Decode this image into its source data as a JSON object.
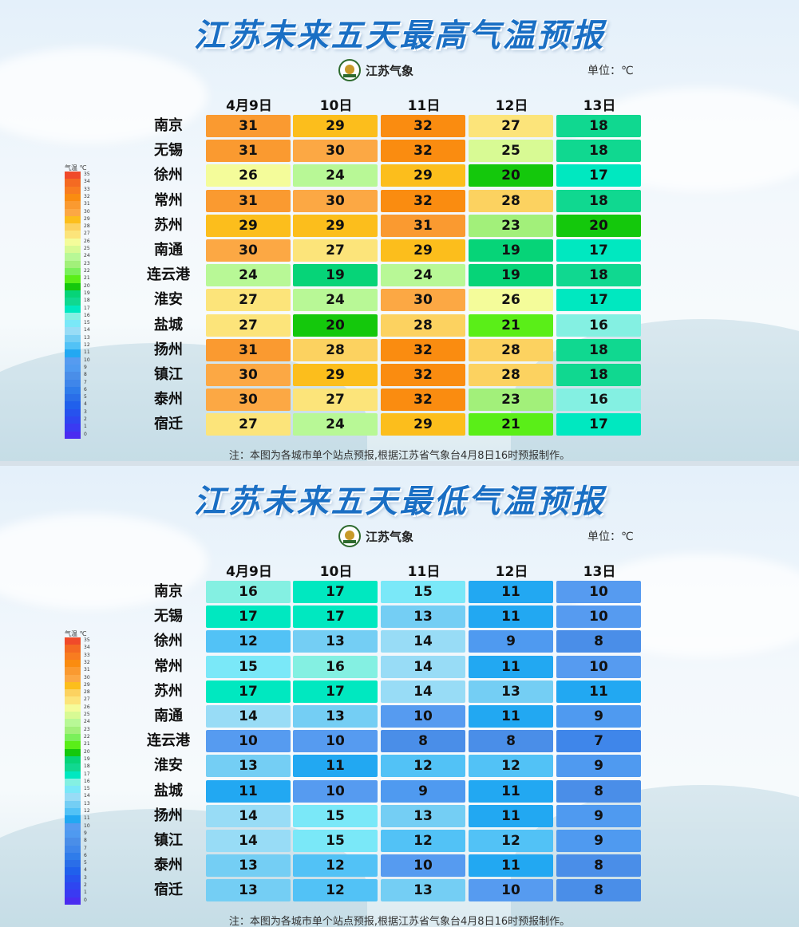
{
  "panels": [
    {
      "title": "江苏未来五天最高气温预报",
      "logo_text": "江苏气象",
      "unit": "单位：℃",
      "note": "注：本图为各城市单个站点预报,根据江苏省气象台4月8日16时预报制作。",
      "legend_head": "气温 ℃"
    },
    {
      "title": "江苏未来五天最低气温预报",
      "logo_text": "江苏气象",
      "unit": "单位：℃",
      "note": "注：本图为各城市单个站点预报,根据江苏省气象台4月8日16时预报制作。",
      "legend_head": "气温 ℃"
    }
  ],
  "chart_data": [
    {
      "type": "heatmap",
      "title": "江苏未来五天最高气温预报",
      "x": [
        "4月9日",
        "10日",
        "11日",
        "12日",
        "13日"
      ],
      "y": [
        "南京",
        "无锡",
        "徐州",
        "常州",
        "苏州",
        "南通",
        "连云港",
        "淮安",
        "盐城",
        "扬州",
        "镇江",
        "泰州",
        "宿迁"
      ],
      "values": [
        [
          31,
          29,
          32,
          27,
          18
        ],
        [
          31,
          30,
          32,
          25,
          18
        ],
        [
          26,
          24,
          29,
          20,
          17
        ],
        [
          31,
          30,
          32,
          28,
          18
        ],
        [
          29,
          29,
          31,
          23,
          20
        ],
        [
          30,
          27,
          29,
          19,
          17
        ],
        [
          24,
          19,
          24,
          19,
          18
        ],
        [
          27,
          24,
          30,
          26,
          17
        ],
        [
          27,
          20,
          28,
          21,
          16
        ],
        [
          31,
          28,
          32,
          28,
          18
        ],
        [
          30,
          29,
          32,
          28,
          18
        ],
        [
          30,
          27,
          32,
          23,
          16
        ],
        [
          27,
          24,
          29,
          21,
          17
        ]
      ],
      "unit": "℃",
      "legend_range": [
        0,
        35
      ]
    },
    {
      "type": "heatmap",
      "title": "江苏未来五天最低气温预报",
      "x": [
        "4月9日",
        "10日",
        "11日",
        "12日",
        "13日"
      ],
      "y": [
        "南京",
        "无锡",
        "徐州",
        "常州",
        "苏州",
        "南通",
        "连云港",
        "淮安",
        "盐城",
        "扬州",
        "镇江",
        "泰州",
        "宿迁"
      ],
      "values": [
        [
          16,
          17,
          15,
          11,
          10
        ],
        [
          17,
          17,
          13,
          11,
          10
        ],
        [
          12,
          13,
          14,
          9,
          8
        ],
        [
          15,
          16,
          14,
          11,
          10
        ],
        [
          17,
          17,
          14,
          13,
          11
        ],
        [
          14,
          13,
          10,
          11,
          9
        ],
        [
          10,
          10,
          8,
          8,
          7
        ],
        [
          13,
          11,
          12,
          12,
          9
        ],
        [
          11,
          10,
          9,
          11,
          8
        ],
        [
          14,
          15,
          13,
          11,
          9
        ],
        [
          14,
          15,
          12,
          12,
          9
        ],
        [
          13,
          12,
          10,
          11,
          8
        ],
        [
          13,
          12,
          13,
          10,
          8
        ]
      ],
      "unit": "℃",
      "legend_range": [
        0,
        35
      ]
    }
  ],
  "legend_colors": {
    "0": "#4a2cf0",
    "1": "#3a3af2",
    "2": "#2e46f0",
    "3": "#2652ee",
    "4": "#2060ec",
    "5": "#2a6ee8",
    "6": "#2f7cea",
    "7": "#3f86ea",
    "8": "#4a8ee8",
    "9": "#4f9af0",
    "10": "#569bf0",
    "11": "#22a8f2",
    "12": "#52c2f6",
    "13": "#74cef4",
    "14": "#98dcf6",
    "15": "#7ae8f8",
    "16": "#84f0e2",
    "17": "#00e8c0",
    "18": "#10d890",
    "19": "#06d478",
    "20": "#14c80c",
    "21": "#5aee18",
    "22": "#7af05a",
    "23": "#a2f07a",
    "24": "#b8f896",
    "25": "#d8fa94",
    "26": "#f4fc9a",
    "27": "#fce47a",
    "28": "#fcd260",
    "29": "#fcbe1c",
    "30": "#fca844",
    "31": "#fa9a30",
    "32": "#fa8c10",
    "33": "#f87c20",
    "34": "#f46a22",
    "35": "#f04a2a"
  }
}
